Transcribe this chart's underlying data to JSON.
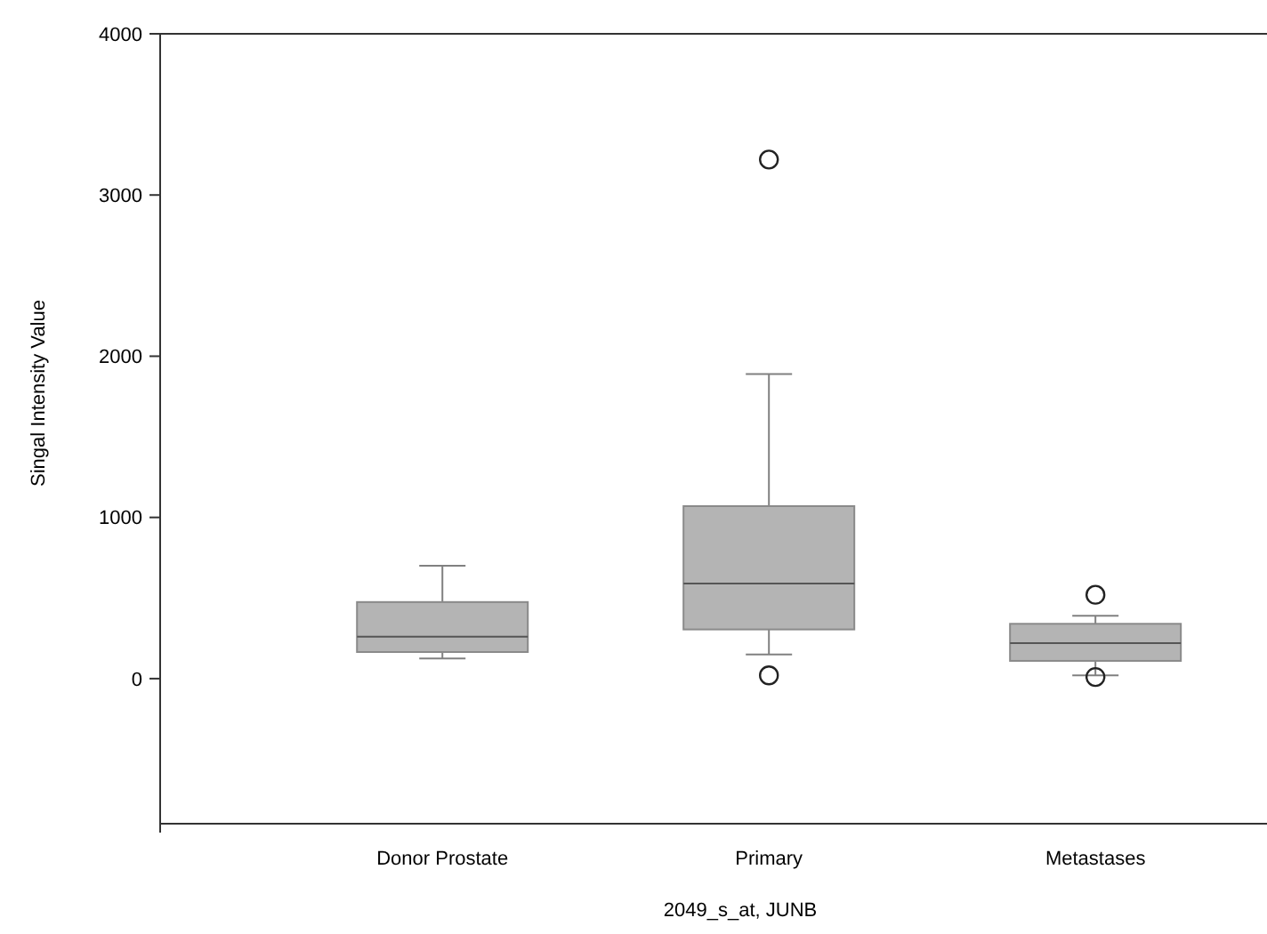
{
  "chart_data": {
    "type": "box",
    "xlabel": "2049_s_at, JUNB",
    "ylabel": "Singal Intensity Value",
    "categories": [
      "Donor Prostate",
      "Primary",
      "Metastases"
    ],
    "color": "#b4b4b4",
    "boxes": [
      {
        "low": 125,
        "q1": 165,
        "median": 260,
        "q3": 475,
        "high": 700
      },
      {
        "low": 150,
        "q1": 305,
        "median": 590,
        "q3": 1070,
        "high": 1890,
        "outliers": [
          3220,
          20
        ]
      },
      {
        "low": 20,
        "q1": 110,
        "median": 220,
        "q3": 340,
        "high": 390,
        "outliers": [
          520,
          10
        ]
      }
    ],
    "ylim": [
      -900,
      4000
    ],
    "yticks": [
      0,
      1000,
      2000,
      3000,
      4000
    ],
    "grid": false
  }
}
